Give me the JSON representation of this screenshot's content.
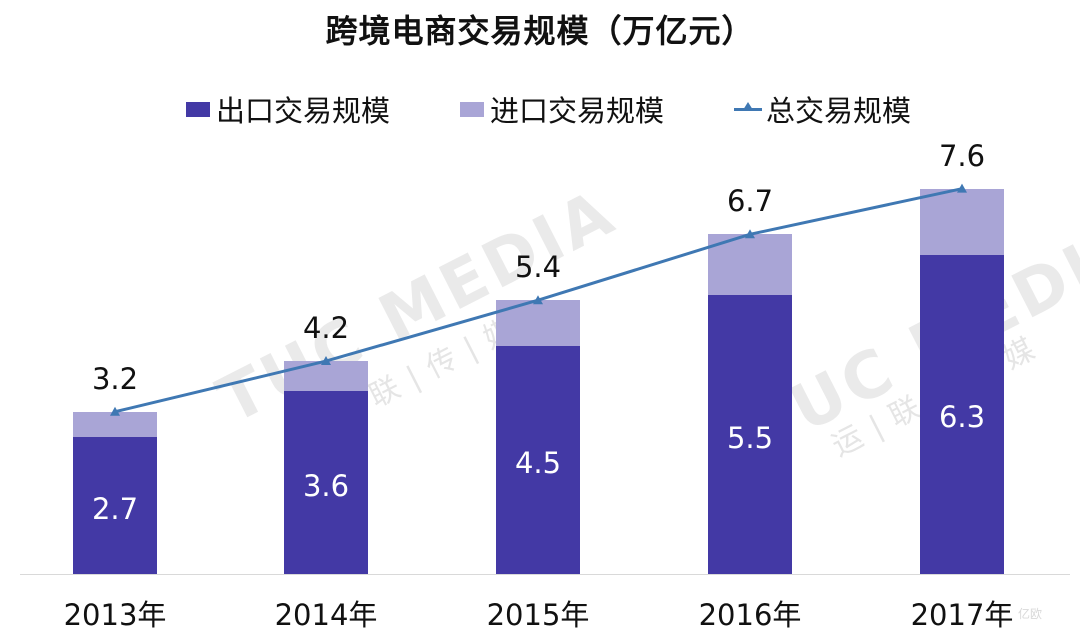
{
  "title": "跨境电商交易规模（万亿元）",
  "legend": [
    {
      "label": "出口交易规模",
      "type": "bar",
      "color": "#4339a5"
    },
    {
      "label": "进口交易规模",
      "type": "bar",
      "color": "#a9a5d6"
    },
    {
      "label": "总交易规模",
      "type": "line",
      "color": "#3f78b3",
      "marker": "triangle"
    }
  ],
  "watermark": {
    "text": "TUC MEDIA",
    "sub": "运|联|传|媒",
    "logo": "亿欧"
  },
  "chart_data": {
    "type": "bar",
    "stacked": true,
    "title": "跨境电商交易规模（万亿元）",
    "xlabel": "",
    "ylabel": "",
    "categories": [
      "2013年",
      "2014年",
      "2015年",
      "2016年",
      "2017年"
    ],
    "series": [
      {
        "name": "出口交易规模",
        "type": "bar",
        "values": [
          2.7,
          3.6,
          4.5,
          5.5,
          6.3
        ],
        "color": "#4339a5",
        "labels_shown": true
      },
      {
        "name": "进口交易规模",
        "type": "bar",
        "values": [
          0.5,
          0.6,
          0.9,
          1.2,
          1.3
        ],
        "color": "#a9a5d6",
        "labels_shown": false
      },
      {
        "name": "总交易规模",
        "type": "line",
        "values": [
          3.2,
          4.2,
          5.4,
          6.7,
          7.6
        ],
        "color": "#3f78b3",
        "labels_shown": true
      }
    ],
    "ylim": [
      0,
      8
    ],
    "grid": false,
    "legend_position": "top"
  }
}
